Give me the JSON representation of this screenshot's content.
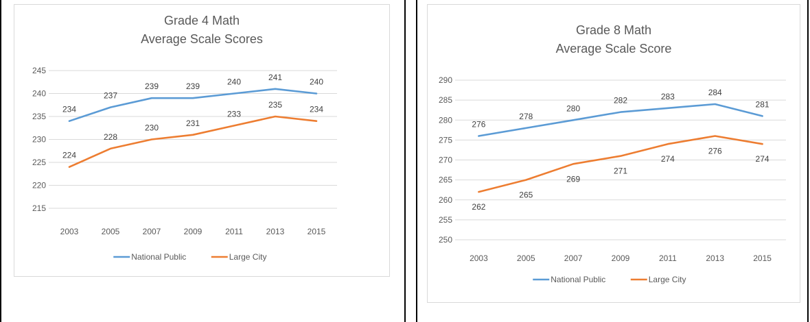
{
  "chart_data": [
    {
      "type": "line",
      "title": "Grade 4 Math",
      "subtitle": "Average Scale Scores",
      "categories": [
        "2003",
        "2005",
        "2007",
        "2009",
        "2011",
        "2013",
        "2015"
      ],
      "ylim": [
        215,
        245
      ],
      "yticks": [
        215,
        220,
        225,
        230,
        235,
        240,
        245
      ],
      "grid": true,
      "legend": "bottom",
      "series": [
        {
          "name": "National Public",
          "color": "#5b9bd5",
          "values": [
            234,
            237,
            239,
            239,
            240,
            241,
            240
          ]
        },
        {
          "name": "Large City",
          "color": "#ed7d31",
          "values": [
            224,
            228,
            230,
            231,
            233,
            235,
            234
          ]
        }
      ]
    },
    {
      "type": "line",
      "title": "Grade 8 Math",
      "subtitle": "Average Scale Score",
      "categories": [
        "2003",
        "2005",
        "2007",
        "2009",
        "2011",
        "2013",
        "2015"
      ],
      "ylim": [
        250,
        290
      ],
      "yticks": [
        250,
        255,
        260,
        265,
        270,
        275,
        280,
        285,
        290
      ],
      "grid": true,
      "legend": "bottom",
      "series": [
        {
          "name": "National Public",
          "color": "#5b9bd5",
          "values": [
            276,
            278,
            280,
            282,
            283,
            284,
            281
          ]
        },
        {
          "name": "Large City",
          "color": "#ed7d31",
          "values": [
            262,
            265,
            269,
            271,
            274,
            276,
            274
          ]
        }
      ]
    }
  ]
}
